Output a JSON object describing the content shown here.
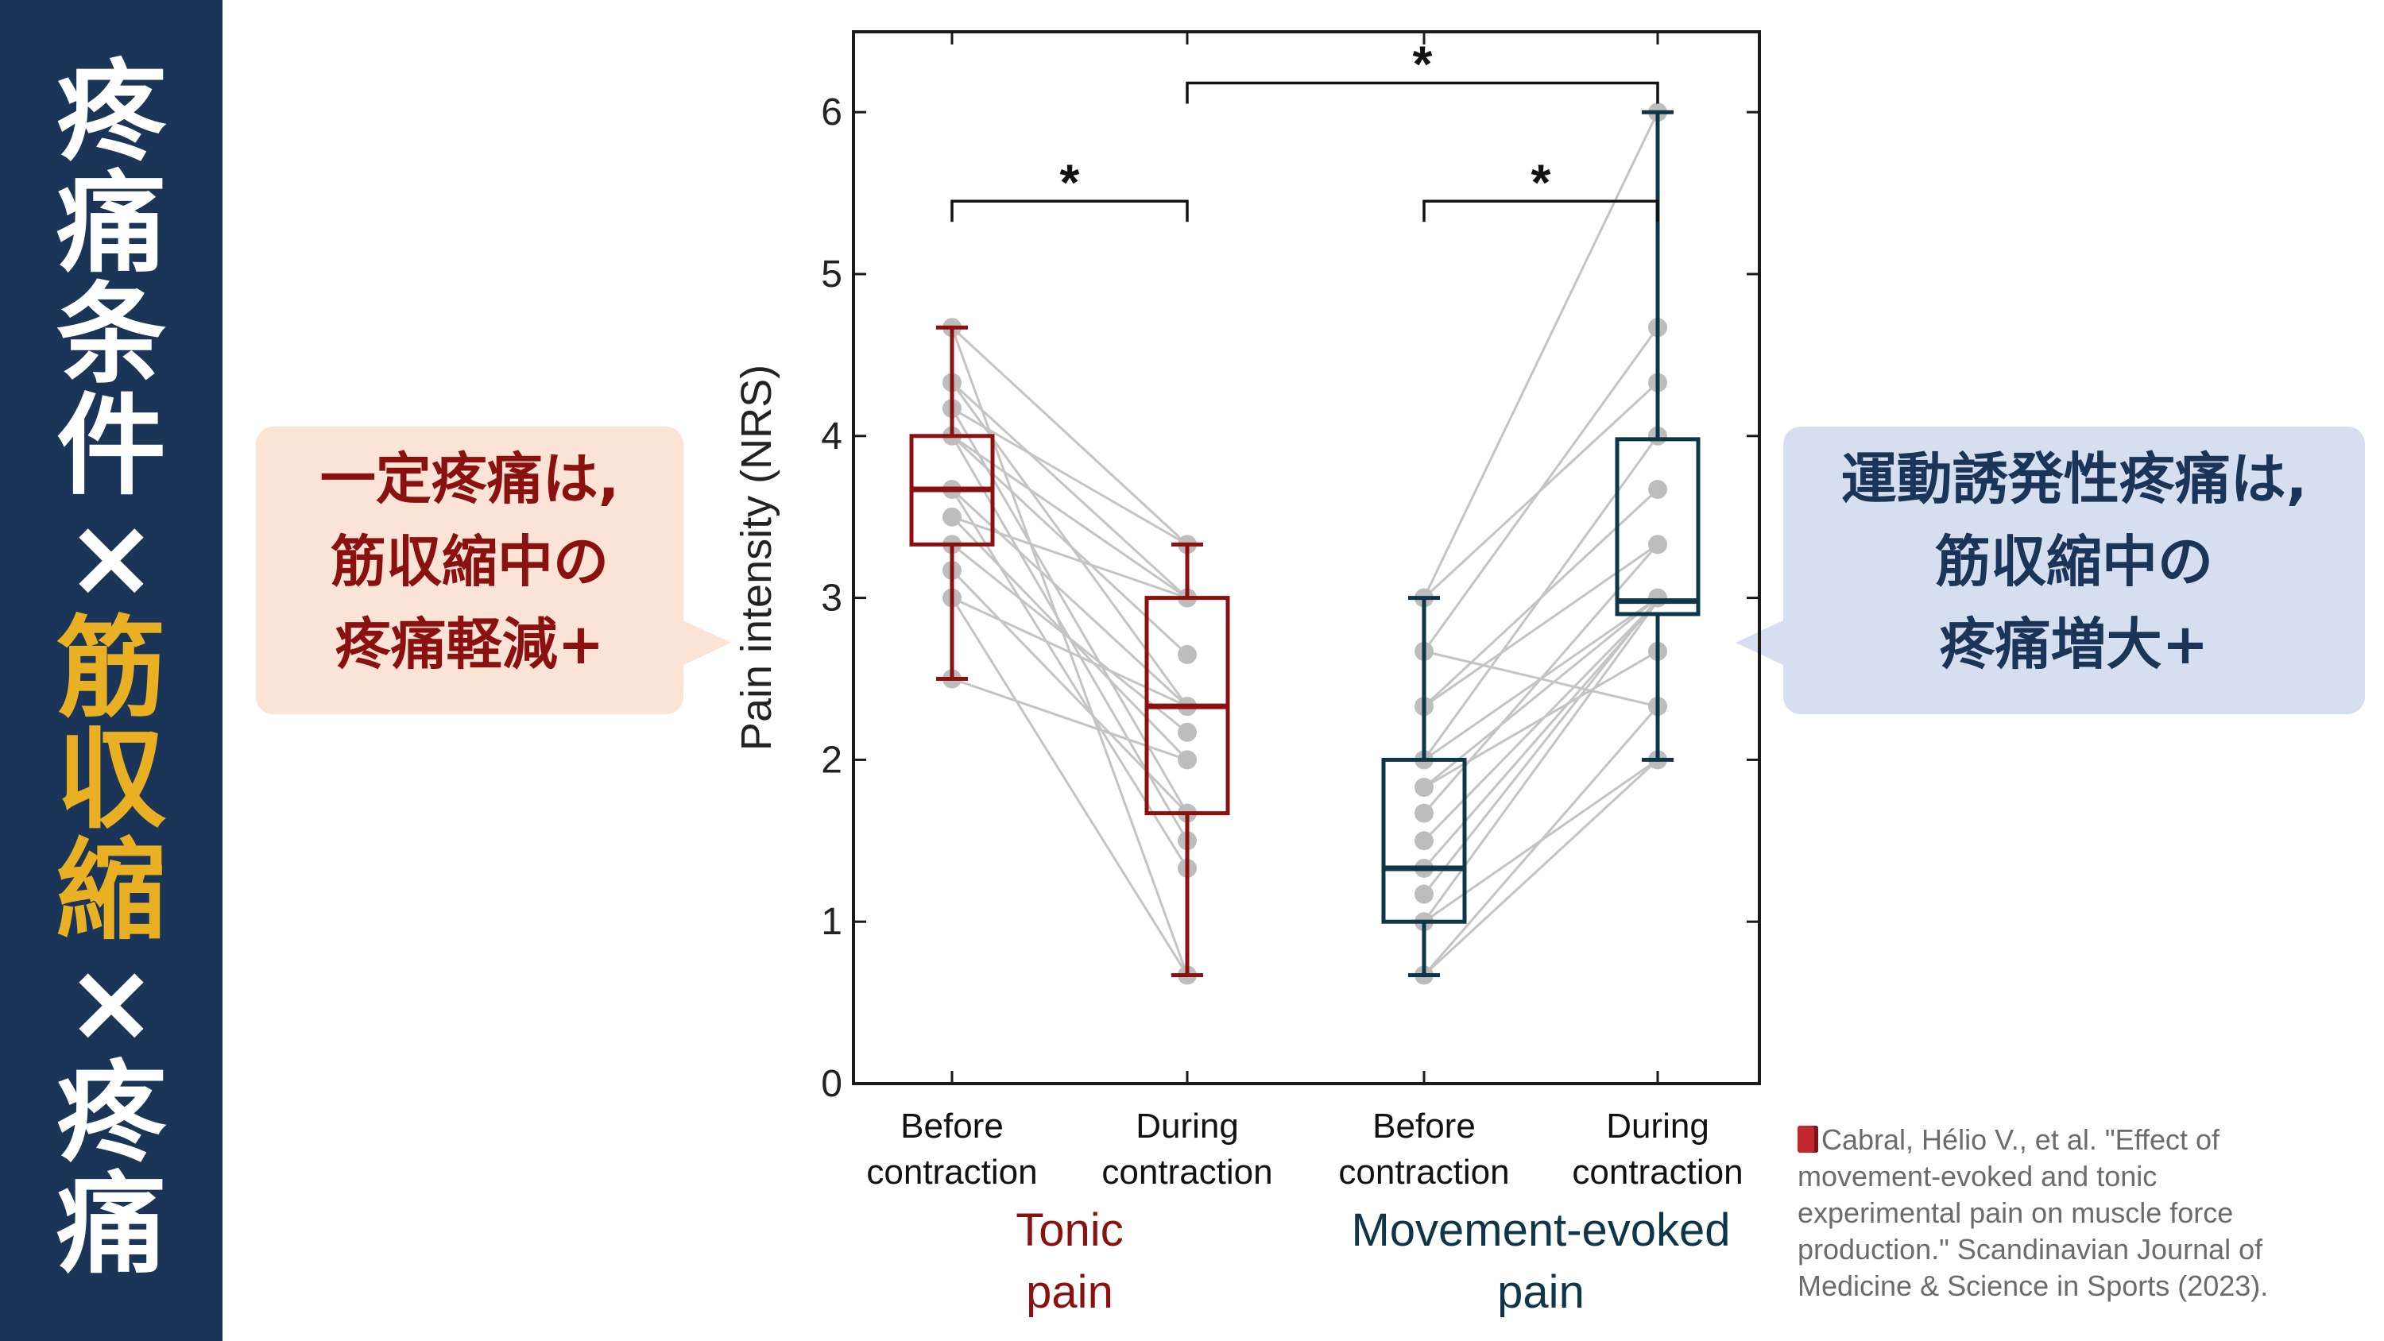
{
  "sidebar": {
    "lines": [
      "疼",
      "痛",
      "条",
      "件",
      "×",
      "筋",
      "収",
      "縮",
      "×",
      "疼",
      "痛"
    ],
    "highlight_indices": [
      5,
      6,
      7
    ],
    "highlight_color": "#e8b022",
    "background_color": "#1a3558"
  },
  "bubbles": {
    "left": {
      "lines": [
        "一定疼痛は,",
        "筋収縮中の",
        "疼痛軽減+"
      ],
      "color": "#8b1111",
      "background": "#fbe3d6"
    },
    "right": {
      "lines": [
        "運動誘発性疼痛は,",
        "筋収縮中の",
        "疼痛増大+"
      ],
      "color": "#1a3558",
      "background": "#d6dff0"
    }
  },
  "citation": {
    "icon": "book-icon",
    "lines": [
      "Cabral, Hélio V., et al. \"Effect of",
      "movement-evoked and tonic",
      "experimental pain on muscle force",
      "production.\" Scandinavian Journal of",
      "Medicine & Science in Sports (2023)."
    ]
  },
  "chart_data": {
    "type": "box",
    "ylabel": "Pain intensity (NRS)",
    "ylim": [
      0,
      6.5
    ],
    "yticks": [
      0,
      1,
      2,
      3,
      4,
      5,
      6
    ],
    "categories": [
      {
        "label_lines": [
          "Before",
          "contraction"
        ]
      },
      {
        "label_lines": [
          "During",
          "contraction"
        ]
      },
      {
        "label_lines": [
          "Before",
          "contraction"
        ]
      },
      {
        "label_lines": [
          "During",
          "contraction"
        ]
      }
    ],
    "groups": [
      {
        "label_lines": [
          "Tonic",
          "pain"
        ],
        "color": "#8b1111",
        "categories": [
          0,
          1
        ]
      },
      {
        "label_lines": [
          "Movement-evoked",
          "pain"
        ],
        "color": "#0e3548",
        "categories": [
          2,
          3
        ]
      }
    ],
    "boxes": [
      {
        "category": 0,
        "whisker_low": 2.5,
        "q1": 3.33,
        "median": 3.67,
        "q3": 4.0,
        "whisker_high": 4.67
      },
      {
        "category": 1,
        "whisker_low": 0.67,
        "q1": 1.67,
        "median": 2.33,
        "q3": 3.0,
        "whisker_high": 3.33
      },
      {
        "category": 2,
        "whisker_low": 0.67,
        "q1": 1.0,
        "median": 1.33,
        "q3": 2.0,
        "whisker_high": 3.0
      },
      {
        "category": 3,
        "whisker_low": 2.0,
        "q1": 2.9,
        "median": 2.98,
        "q3": 3.98,
        "whisker_high": 6.0
      }
    ],
    "paired_lines": [
      {
        "categories": [
          0,
          1
        ],
        "pairs": [
          [
            4.67,
            3.33
          ],
          [
            4.67,
            0.67
          ],
          [
            4.33,
            3.0
          ],
          [
            4.33,
            2.33
          ],
          [
            4.17,
            3.33
          ],
          [
            4.17,
            1.67
          ],
          [
            4.0,
            3.0
          ],
          [
            4.0,
            1.5
          ],
          [
            4.0,
            2.65
          ],
          [
            3.67,
            2.33
          ],
          [
            3.67,
            1.33
          ],
          [
            3.5,
            2.0
          ],
          [
            3.5,
            3.0
          ],
          [
            3.33,
            2.17
          ],
          [
            3.17,
            1.67
          ],
          [
            3.0,
            2.33
          ],
          [
            3.0,
            0.67
          ],
          [
            2.5,
            2.0
          ]
        ]
      },
      {
        "categories": [
          2,
          3
        ],
        "pairs": [
          [
            3.0,
            6.0
          ],
          [
            3.0,
            4.33
          ],
          [
            2.67,
            4.67
          ],
          [
            2.67,
            2.33
          ],
          [
            2.33,
            3.67
          ],
          [
            2.33,
            3.33
          ],
          [
            2.0,
            4.0
          ],
          [
            2.0,
            3.0
          ],
          [
            1.83,
            2.67
          ],
          [
            1.83,
            3.0
          ],
          [
            1.67,
            3.33
          ],
          [
            1.5,
            2.98
          ],
          [
            1.33,
            2.98
          ],
          [
            1.17,
            3.0
          ],
          [
            1.0,
            2.0
          ],
          [
            1.0,
            2.98
          ],
          [
            0.67,
            2.33
          ],
          [
            0.67,
            2.0
          ]
        ]
      }
    ],
    "points": [
      {
        "category": 0,
        "values": [
          4.67,
          4.33,
          4.17,
          4.0,
          3.67,
          3.5,
          3.33,
          3.17,
          3.0,
          2.5
        ]
      },
      {
        "category": 1,
        "values": [
          3.33,
          3.0,
          2.65,
          2.33,
          2.17,
          2.0,
          1.67,
          1.5,
          1.33,
          0.67
        ]
      },
      {
        "category": 2,
        "values": [
          3.0,
          2.67,
          2.33,
          2.0,
          1.83,
          1.67,
          1.5,
          1.33,
          1.17,
          1.0,
          0.67
        ]
      },
      {
        "category": 3,
        "values": [
          6.0,
          4.67,
          4.33,
          4.0,
          3.67,
          3.33,
          3.0,
          2.67,
          2.33,
          2.0
        ]
      }
    ],
    "significance": [
      {
        "from": 0,
        "to": 1,
        "y": 5.45,
        "label": "*"
      },
      {
        "from": 2,
        "to": 3,
        "y": 5.45,
        "label": "*"
      },
      {
        "from": 1,
        "to": 3,
        "y": 6.18,
        "label": "*"
      }
    ],
    "point_color": "#bdbdbd",
    "line_color": "#c4c4c4"
  }
}
